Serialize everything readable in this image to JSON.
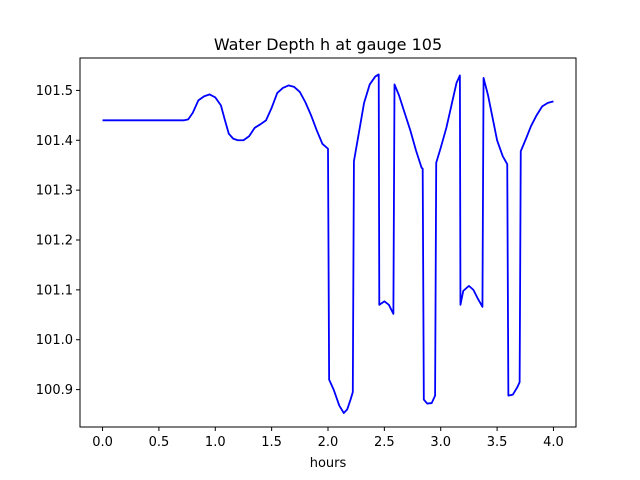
{
  "chart_data": {
    "type": "line",
    "title": "Water Depth h at gauge 105",
    "xlabel": "hours",
    "ylabel": "",
    "xlim": [
      -0.2,
      4.2
    ],
    "ylim": [
      100.825,
      101.565
    ],
    "xticks": [
      0.0,
      0.5,
      1.0,
      1.5,
      2.0,
      2.5,
      3.0,
      3.5,
      4.0
    ],
    "xtick_labels": [
      "0.0",
      "0.5",
      "1.0",
      "1.5",
      "2.0",
      "2.5",
      "3.0",
      "3.5",
      "4.0"
    ],
    "yticks": [
      100.9,
      101.0,
      101.1,
      101.2,
      101.3,
      101.4,
      101.5
    ],
    "ytick_labels": [
      "100.9",
      "101.0",
      "101.1",
      "101.2",
      "101.3",
      "101.4",
      "101.5"
    ],
    "grid": false,
    "series": [
      {
        "color": "#0000ff",
        "x": [
          0.0,
          0.3,
          0.6,
          0.72,
          0.76,
          0.8,
          0.85,
          0.9,
          0.95,
          1.0,
          1.05,
          1.08,
          1.12,
          1.16,
          1.2,
          1.25,
          1.3,
          1.35,
          1.4,
          1.45,
          1.5,
          1.55,
          1.6,
          1.65,
          1.7,
          1.75,
          1.8,
          1.85,
          1.9,
          1.95,
          2.0,
          2.01,
          2.05,
          2.1,
          2.14,
          2.17,
          2.2,
          2.22,
          2.23,
          2.27,
          2.32,
          2.37,
          2.42,
          2.45,
          2.455,
          2.5,
          2.54,
          2.58,
          2.59,
          2.63,
          2.68,
          2.73,
          2.78,
          2.83,
          2.84,
          2.85,
          2.88,
          2.92,
          2.95,
          2.96,
          3.0,
          3.05,
          3.1,
          3.14,
          3.17,
          3.175,
          3.2,
          3.25,
          3.29,
          3.33,
          3.37,
          3.38,
          3.42,
          3.46,
          3.5,
          3.55,
          3.59,
          3.6,
          3.64,
          3.68,
          3.7,
          3.71,
          3.76,
          3.8,
          3.85,
          3.9,
          3.95,
          4.0
        ],
        "y": [
          101.44,
          101.44,
          101.44,
          101.44,
          101.442,
          101.455,
          101.48,
          101.488,
          101.492,
          101.486,
          101.47,
          101.445,
          101.413,
          101.403,
          101.4,
          101.4,
          101.408,
          101.425,
          101.432,
          101.44,
          101.465,
          101.495,
          101.505,
          101.51,
          101.507,
          101.497,
          101.476,
          101.45,
          101.42,
          101.393,
          101.383,
          100.92,
          100.9,
          100.868,
          100.853,
          100.86,
          100.88,
          100.895,
          101.358,
          101.41,
          101.475,
          101.512,
          101.528,
          101.532,
          101.07,
          101.077,
          101.07,
          101.052,
          101.512,
          101.49,
          101.455,
          101.42,
          101.38,
          101.345,
          101.343,
          100.88,
          100.872,
          100.873,
          100.888,
          101.355,
          101.385,
          101.425,
          101.475,
          101.515,
          101.53,
          101.07,
          101.098,
          101.108,
          101.1,
          101.082,
          101.066,
          101.525,
          101.49,
          101.445,
          101.4,
          101.368,
          101.352,
          100.888,
          100.89,
          100.905,
          100.915,
          101.378,
          101.405,
          101.428,
          101.45,
          101.468,
          101.475,
          101.478
        ]
      }
    ]
  }
}
